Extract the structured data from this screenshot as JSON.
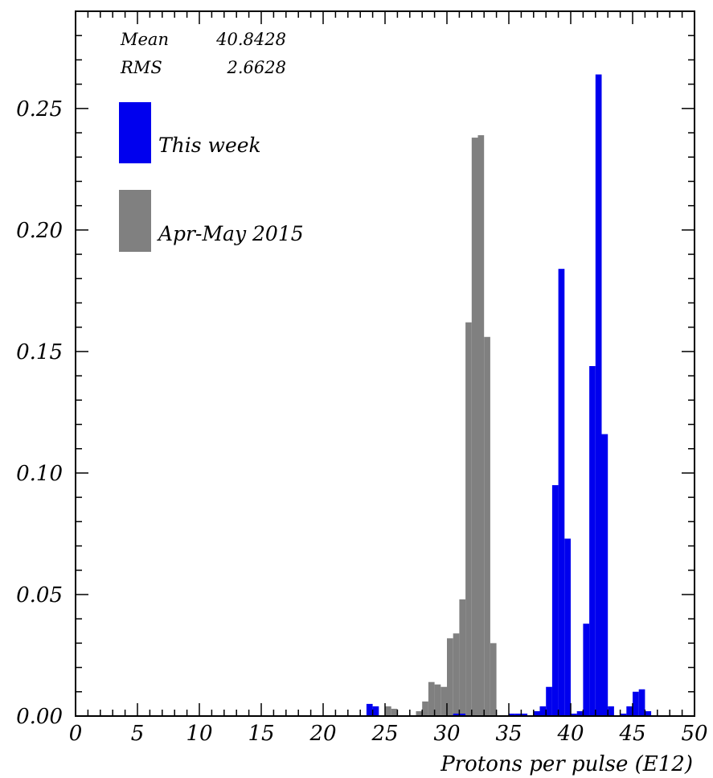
{
  "chart_data": {
    "type": "bar",
    "xlabel": "Protons per pulse (E12)",
    "ylabel": "",
    "xlim": [
      0,
      50
    ],
    "ylim": [
      0,
      0.29
    ],
    "bin_width": 0.5,
    "x_ticks": [
      "0",
      "5",
      "10",
      "15",
      "20",
      "25",
      "30",
      "35",
      "40",
      "45",
      "50"
    ],
    "y_ticks": [
      "0.00",
      "0.05",
      "0.10",
      "0.15",
      "0.20",
      "0.25"
    ],
    "y_tick_values": [
      0,
      0.05,
      0.1,
      0.15,
      0.2,
      0.25
    ],
    "stats": [
      {
        "label": "Mean",
        "value": "40.8428"
      },
      {
        "label": "RMS",
        "value": "2.6628"
      }
    ],
    "legend": {
      "placement": "top-left",
      "entries": [
        {
          "label": "This week",
          "color": "#0000ee"
        },
        {
          "label": "Apr-May 2015",
          "color": "#808080"
        }
      ]
    },
    "series": [
      {
        "name": "Apr-May 2015",
        "color": "#808080",
        "bins": [
          [
            25.0,
            0.004
          ],
          [
            25.5,
            0.003
          ],
          [
            27.5,
            0.002
          ],
          [
            28.0,
            0.006
          ],
          [
            28.5,
            0.014
          ],
          [
            29.0,
            0.013
          ],
          [
            29.5,
            0.012
          ],
          [
            30.0,
            0.032
          ],
          [
            30.5,
            0.034
          ],
          [
            31.0,
            0.048
          ],
          [
            31.5,
            0.162
          ],
          [
            32.0,
            0.238
          ],
          [
            32.5,
            0.239
          ],
          [
            33.0,
            0.156
          ],
          [
            33.5,
            0.03
          ]
        ]
      },
      {
        "name": "This week",
        "color": "#0000ee",
        "bins": [
          [
            23.5,
            0.005
          ],
          [
            24.0,
            0.004
          ],
          [
            30.5,
            0.001
          ],
          [
            31.0,
            0.001
          ],
          [
            35.0,
            0.001
          ],
          [
            35.5,
            0.001
          ],
          [
            36.0,
            0.001
          ],
          [
            37.0,
            0.002
          ],
          [
            37.5,
            0.004
          ],
          [
            38.0,
            0.012
          ],
          [
            38.5,
            0.095
          ],
          [
            39.0,
            0.184
          ],
          [
            39.5,
            0.073
          ],
          [
            40.0,
            0.001
          ],
          [
            40.5,
            0.002
          ],
          [
            41.0,
            0.038
          ],
          [
            41.5,
            0.144
          ],
          [
            42.0,
            0.264
          ],
          [
            42.5,
            0.116
          ],
          [
            43.0,
            0.004
          ],
          [
            44.0,
            0.001
          ],
          [
            44.5,
            0.004
          ],
          [
            45.0,
            0.01
          ],
          [
            45.5,
            0.011
          ],
          [
            46.0,
            0.002
          ]
        ]
      }
    ]
  }
}
